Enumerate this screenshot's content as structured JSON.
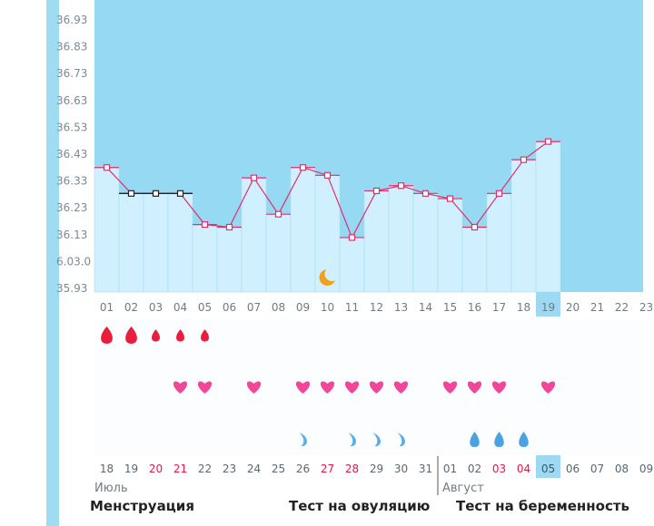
{
  "chart_data": {
    "type": "line",
    "y_ticks": [
      "36.93",
      "36.83",
      "36.73",
      "36.63",
      "36.53",
      "36.43",
      "36.33",
      "36.23",
      "36.13",
      "6.03.0",
      "35.93"
    ],
    "ylim": [
      35.93,
      37.0
    ],
    "cycle_days": [
      "01",
      "02",
      "03",
      "04",
      "05",
      "06",
      "07",
      "08",
      "09",
      "10",
      "11",
      "12",
      "13",
      "14",
      "15",
      "16",
      "17",
      "18",
      "19",
      "20",
      "21",
      "22",
      "23"
    ],
    "highlight_day": "19",
    "temperatures": [
      36.41,
      36.31,
      36.31,
      36.31,
      36.19,
      36.18,
      36.37,
      36.23,
      36.41,
      36.38,
      36.14,
      36.32,
      36.34,
      36.31,
      36.29,
      36.18,
      36.31,
      36.44,
      36.51
    ],
    "flat_marker_days": [
      "02",
      "03",
      "04"
    ],
    "dates": [
      "18",
      "19",
      "20",
      "21",
      "22",
      "23",
      "24",
      "25",
      "26",
      "27",
      "28",
      "29",
      "30",
      "31",
      "01",
      "02",
      "03",
      "04",
      "05",
      "06",
      "07",
      "08",
      "09"
    ],
    "weekend_dates_index": [
      2,
      3,
      9,
      10,
      16,
      17
    ],
    "today_date_index": 18,
    "months": [
      "Июль",
      "Август"
    ],
    "menstruation": [
      3,
      3,
      2,
      2,
      2,
      0,
      0,
      0,
      0,
      0,
      0,
      0,
      0,
      0,
      0,
      0,
      0,
      0,
      0,
      0,
      0,
      0,
      0
    ],
    "hearts": [
      0,
      0,
      0,
      1,
      1,
      0,
      1,
      0,
      1,
      1,
      1,
      1,
      1,
      0,
      1,
      1,
      1,
      0,
      1,
      0,
      0,
      0,
      0
    ],
    "drops": [
      0,
      0,
      0,
      0,
      0,
      0,
      0,
      0,
      1,
      0,
      1,
      1,
      1,
      0,
      0,
      2,
      2,
      2,
      0,
      0,
      0,
      0,
      0
    ],
    "moon_day_index": 9
  },
  "legend": {
    "menstruation": "Менструация",
    "ovulation_test": "Тест на овуляцию",
    "pregnancy_test": "Тест на беременность"
  },
  "colors": {
    "sky": "#96d9f3",
    "bar": "#d0efff",
    "line": "#e0306a",
    "blood": "#e81e3c",
    "heart": "#f0479b",
    "drop_light": "#56b0e6",
    "drop_dark": "#4aa3e0",
    "weekend": "#e8144a",
    "highlight": "#9dd9f2",
    "moon": "#f0a11e"
  }
}
